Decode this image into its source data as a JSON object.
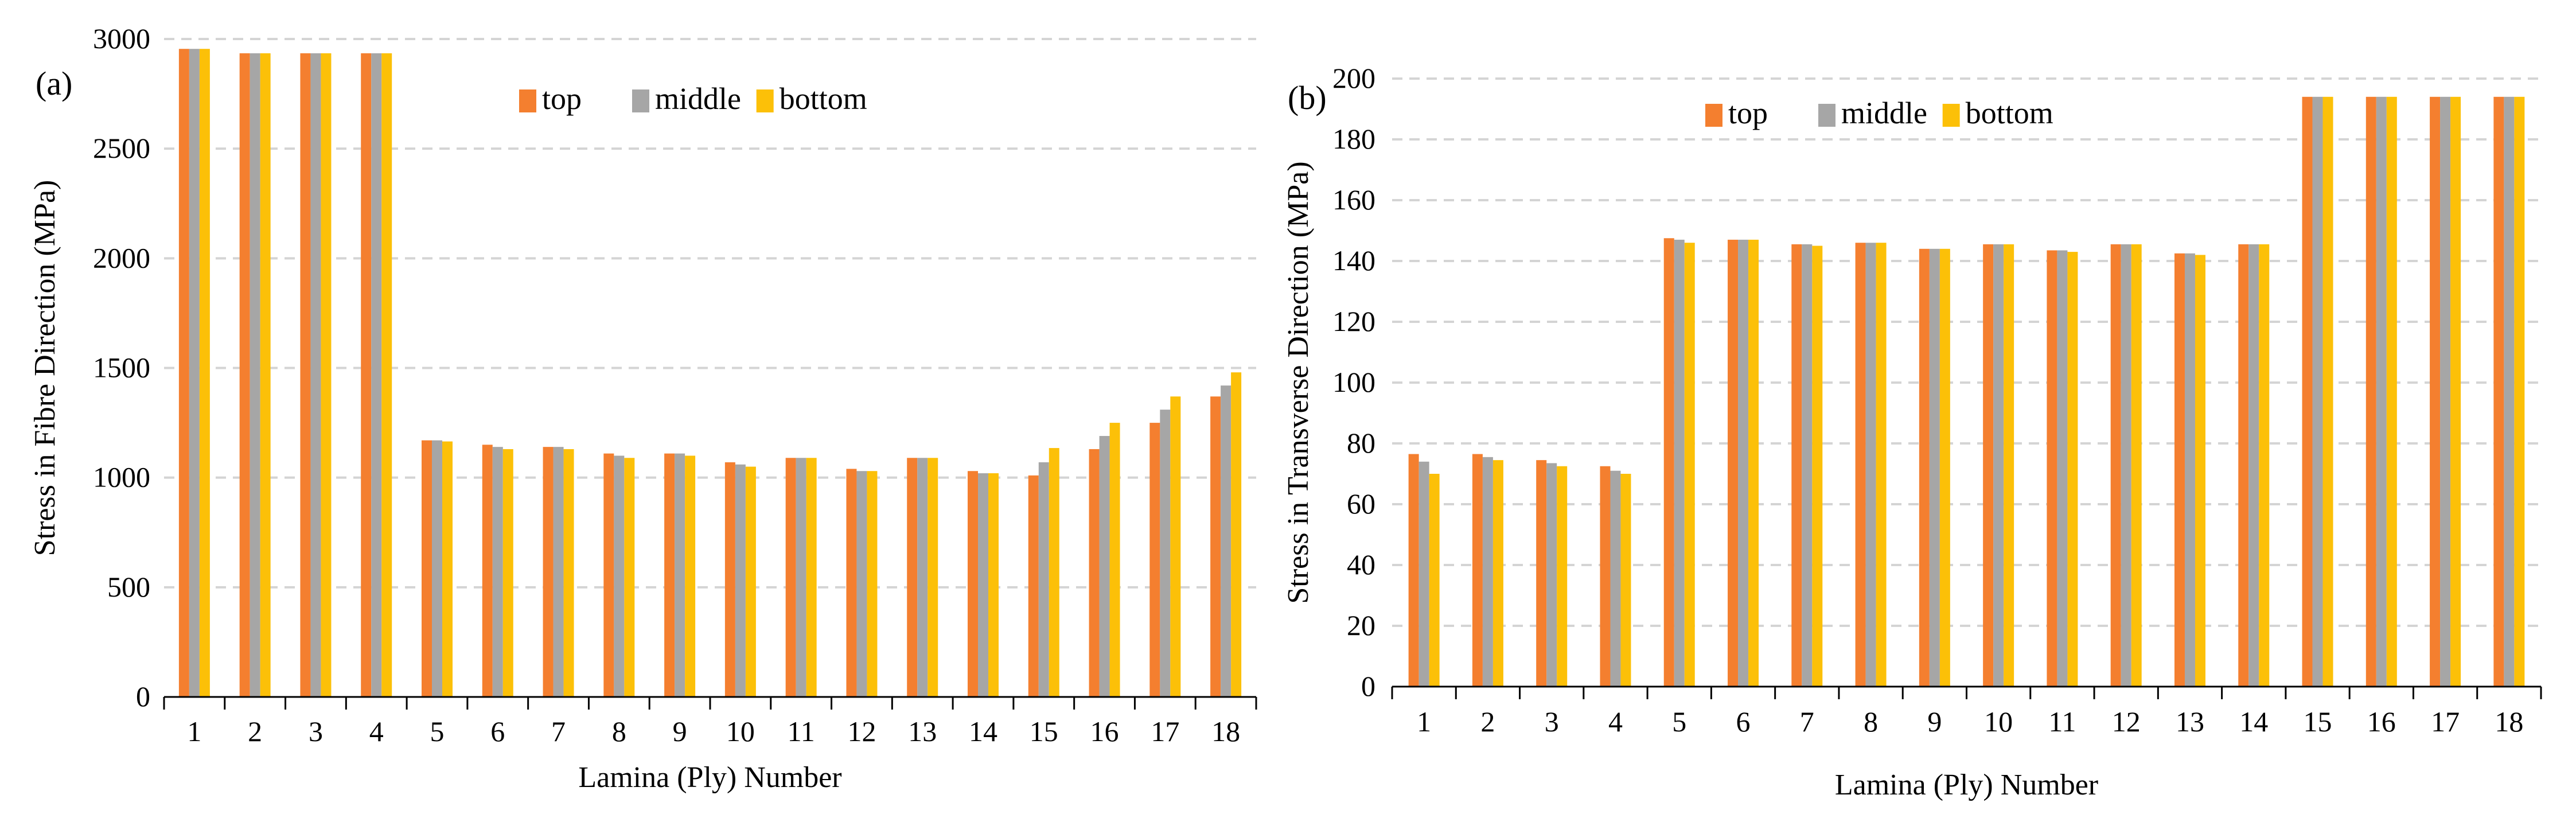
{
  "colors": {
    "top": "#f47f2f",
    "middle": "#a6a6a6",
    "bottom": "#fcc008",
    "grid": "#d4d4d4",
    "axis": "#000000"
  },
  "chart_data": [
    {
      "type": "bar",
      "panel_label": "(a)",
      "title": "",
      "xlabel": "Lamina (Ply) Number",
      "ylabel": "Stress in Fibre Direction (MPa)",
      "categories": [
        "1",
        "2",
        "3",
        "4",
        "5",
        "6",
        "7",
        "8",
        "9",
        "10",
        "11",
        "12",
        "13",
        "14",
        "15",
        "16",
        "17",
        "18"
      ],
      "ylim": [
        0,
        3000
      ],
      "yticks": [
        0,
        500,
        1000,
        1500,
        2000,
        2500,
        3000
      ],
      "grid": true,
      "legend_position": "top-center",
      "series": [
        {
          "name": "top",
          "color": "#f47f2f",
          "values": [
            2955,
            2935,
            2935,
            2935,
            1170,
            1150,
            1140,
            1110,
            1110,
            1070,
            1090,
            1040,
            1090,
            1030,
            1010,
            1130,
            1250,
            1370
          ]
        },
        {
          "name": "middle",
          "color": "#a6a6a6",
          "values": [
            2955,
            2935,
            2935,
            2935,
            1170,
            1140,
            1140,
            1100,
            1110,
            1060,
            1090,
            1030,
            1090,
            1020,
            1070,
            1190,
            1310,
            1420
          ]
        },
        {
          "name": "bottom",
          "color": "#fcc008",
          "values": [
            2955,
            2935,
            2935,
            2935,
            1165,
            1130,
            1130,
            1090,
            1100,
            1050,
            1090,
            1030,
            1090,
            1020,
            1135,
            1250,
            1370,
            1480
          ]
        }
      ]
    },
    {
      "type": "bar",
      "panel_label": "(b)",
      "title": "",
      "xlabel": "Lamina (Ply) Number",
      "ylabel": "Stress in Transverse Direction (MPa)",
      "categories": [
        "1",
        "2",
        "3",
        "4",
        "5",
        "6",
        "7",
        "8",
        "9",
        "10",
        "11",
        "12",
        "13",
        "14",
        "15",
        "16",
        "17",
        "18"
      ],
      "ylim": [
        0,
        200
      ],
      "yticks": [
        0,
        20,
        40,
        60,
        80,
        100,
        120,
        140,
        160,
        180,
        200
      ],
      "grid": true,
      "legend_position": "top-left",
      "series": [
        {
          "name": "top",
          "color": "#f47f2f",
          "values": [
            76.5,
            76.5,
            74.5,
            72.5,
            147.5,
            147,
            145.5,
            146,
            144,
            145.5,
            143.5,
            145.5,
            142.5,
            145.5,
            194,
            194,
            194,
            194
          ]
        },
        {
          "name": "middle",
          "color": "#a6a6a6",
          "values": [
            74,
            75.5,
            73.5,
            71,
            147,
            147,
            145.5,
            146,
            144,
            145.5,
            143.5,
            145.5,
            142.5,
            145.5,
            194,
            194,
            194,
            194
          ]
        },
        {
          "name": "bottom",
          "color": "#fcc008",
          "values": [
            70,
            74.5,
            72.5,
            70,
            146,
            147,
            145,
            146,
            144,
            145.5,
            143,
            145.5,
            142,
            145.5,
            194,
            194,
            194,
            194
          ]
        }
      ]
    }
  ]
}
